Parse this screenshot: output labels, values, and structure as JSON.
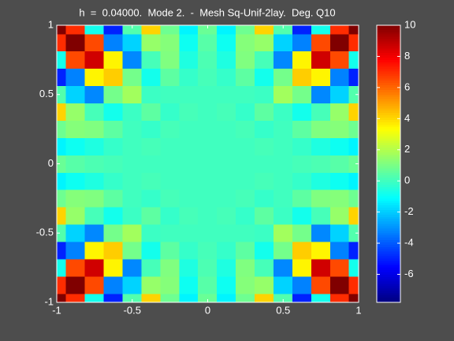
{
  "chart_data": {
    "type": "heatmap",
    "title": "h  =  0.04000.  Mode 2.  -  Mesh Sq-Unif-2lay.  Deg. Q10",
    "x": [
      -1,
      -0.875,
      -0.75,
      -0.625,
      -0.5,
      -0.375,
      -0.25,
      -0.125,
      0,
      0.125,
      0.25,
      0.375,
      0.5,
      0.625,
      0.75,
      0.875,
      1
    ],
    "y": [
      -1,
      -0.875,
      -0.75,
      -0.625,
      -0.5,
      -0.375,
      -0.25,
      -0.125,
      0,
      0.125,
      0.25,
      0.375,
      0.5,
      0.625,
      0.75,
      0.875,
      1
    ],
    "z": [
      [
        10,
        7,
        -0.8,
        -5,
        0.3,
        4.1,
        0.8,
        -1.3,
        0.7,
        -1.3,
        0.8,
        4.1,
        0.3,
        -5,
        -0.8,
        7,
        10
      ],
      [
        7,
        10,
        6.5,
        -3.3,
        -1.9,
        1.5,
        1.2,
        -0.9,
        0.4,
        -0.9,
        1.2,
        1.5,
        -1.9,
        -3.3,
        6.5,
        10,
        7
      ],
      [
        -0.8,
        6.5,
        8.6,
        3.5,
        -3.2,
        0.1,
        1.1,
        -0.6,
        0.2,
        -0.6,
        1.1,
        0.1,
        -3.2,
        3.5,
        8.6,
        6.5,
        -0.8
      ],
      [
        -5,
        -3.3,
        3.5,
        4.2,
        0.9,
        -0.8,
        0.5,
        -0.2,
        0.1,
        -0.2,
        0.5,
        -0.8,
        0.9,
        4.2,
        3.5,
        -3.3,
        -5
      ],
      [
        0.3,
        -1.9,
        -3.2,
        0.9,
        1.7,
        -0.1,
        0,
        0,
        0,
        0,
        0,
        -0.1,
        1.7,
        0.9,
        -3.2,
        -1.9,
        0.3
      ],
      [
        4.1,
        1.5,
        0.1,
        -0.8,
        -0.1,
        0.5,
        -0.2,
        0.1,
        0,
        0.1,
        -0.2,
        0.5,
        -0.1,
        -0.8,
        0.1,
        1.5,
        4.1
      ],
      [
        0.8,
        1.2,
        1.1,
        0.5,
        0,
        -0.2,
        0.1,
        0,
        0,
        0,
        0.1,
        -0.2,
        0,
        0.5,
        1.1,
        1.2,
        0.8
      ],
      [
        -1.3,
        -0.9,
        -0.6,
        -0.2,
        0,
        0.1,
        0,
        0,
        0,
        0,
        0,
        0.1,
        0,
        -0.2,
        -0.6,
        -0.9,
        -1.3
      ],
      [
        0.7,
        0.4,
        0.2,
        0.1,
        0,
        0,
        0,
        0,
        0,
        0,
        0,
        0,
        0,
        0.1,
        0.2,
        0.4,
        0.7
      ],
      [
        -1.3,
        -0.9,
        -0.6,
        -0.2,
        0,
        0.1,
        0,
        0,
        0,
        0,
        0,
        0.1,
        0,
        -0.2,
        -0.6,
        -0.9,
        -1.3
      ],
      [
        0.8,
        1.2,
        1.1,
        0.5,
        0,
        -0.2,
        0.1,
        0,
        0,
        0,
        0.1,
        -0.2,
        0,
        0.5,
        1.1,
        1.2,
        0.8
      ],
      [
        4.1,
        1.5,
        0.1,
        -0.8,
        -0.1,
        0.5,
        -0.2,
        0.1,
        0,
        0.1,
        -0.2,
        0.5,
        -0.1,
        -0.8,
        0.1,
        1.5,
        4.1
      ],
      [
        0.3,
        -1.9,
        -3.2,
        0.9,
        1.7,
        -0.1,
        0,
        0,
        0,
        0,
        0,
        -0.1,
        1.7,
        0.9,
        -3.2,
        -1.9,
        0.3
      ],
      [
        -5,
        -3.3,
        3.5,
        4.2,
        0.9,
        -0.8,
        0.5,
        -0.2,
        0.1,
        -0.2,
        0.5,
        -0.8,
        0.9,
        4.2,
        3.5,
        -3.3,
        -5
      ],
      [
        -0.8,
        6.5,
        8.6,
        3.5,
        -3.2,
        0.1,
        1.1,
        -0.6,
        0.2,
        -0.6,
        1.1,
        0.1,
        -3.2,
        3.5,
        8.6,
        6.5,
        -0.8
      ],
      [
        7,
        10,
        6.5,
        -3.3,
        -1.9,
        1.5,
        1.2,
        -0.9,
        0.4,
        -0.9,
        1.2,
        1.5,
        -1.9,
        -3.3,
        6.5,
        10,
        7
      ],
      [
        10,
        7,
        -0.8,
        -5,
        0.3,
        4.1,
        0.8,
        -1.3,
        0.7,
        -1.3,
        0.8,
        4.1,
        0.3,
        -5,
        -0.8,
        7,
        10
      ]
    ],
    "xlim": [
      -1,
      1
    ],
    "ylim": [
      -1,
      1
    ],
    "xticks": [
      -1,
      -0.5,
      0,
      0.5,
      1
    ],
    "yticks": [
      -1,
      -0.5,
      0,
      0.5,
      1
    ],
    "colormap": "jet",
    "clim": [
      -7.8,
      10
    ],
    "cticks": [
      -6,
      -4,
      -2,
      0,
      2,
      4,
      6,
      8,
      10
    ]
  }
}
